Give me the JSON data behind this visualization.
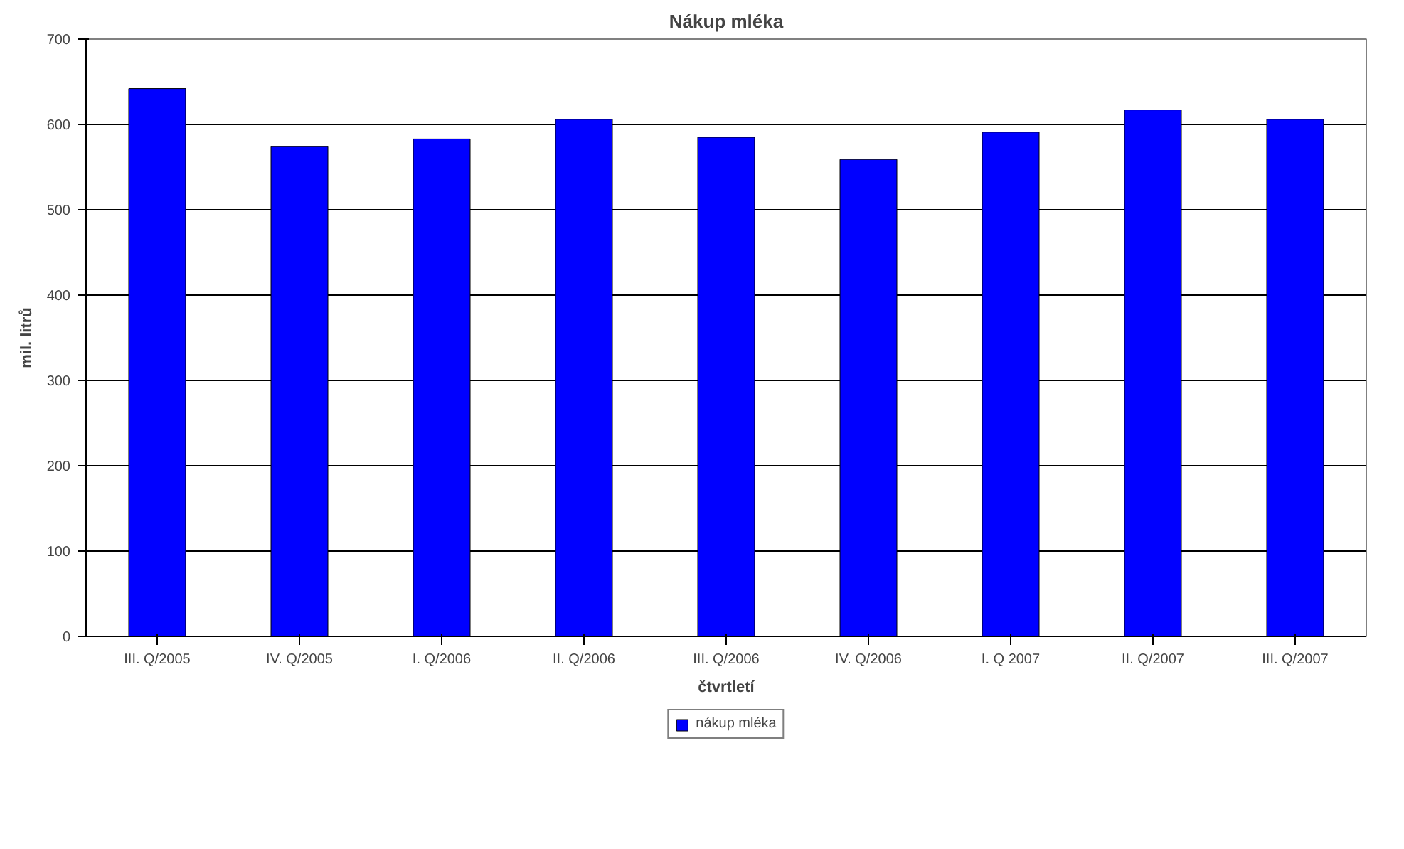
{
  "chart_data": {
    "type": "bar",
    "title": "Nákup mléka",
    "xlabel": "čtvrtletí",
    "ylabel": "mil. litrů",
    "categories": [
      "III. Q/2005",
      "IV. Q/2005",
      "I. Q/2006",
      "II. Q/2006",
      "III. Q/2006",
      "IV. Q/2006",
      "I. Q 2007",
      "II. Q/2007",
      "III. Q/2007"
    ],
    "series": [
      {
        "name": "nákup mléka",
        "color": "#0000ff",
        "values": [
          642,
          574,
          583,
          606,
          585,
          559,
          591,
          617,
          606
        ]
      }
    ],
    "ylim": [
      0,
      700
    ],
    "yticks": [
      0,
      100,
      200,
      300,
      400,
      500,
      600,
      700
    ],
    "grid": "y",
    "legend": "bottom"
  }
}
